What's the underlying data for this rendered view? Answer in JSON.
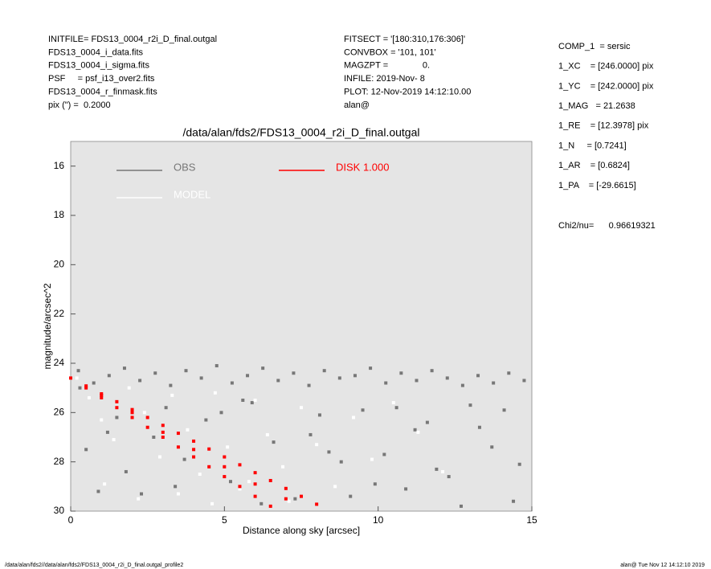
{
  "header": {
    "left": [
      "INITFILE= FDS13_0004_r2i_D_final.outgal",
      "FDS13_0004_i_data.fits",
      "FDS13_0004_i_sigma.fits",
      "PSF     = psf_i13_over2.fits",
      "FDS13_0004_r_finmask.fits",
      "pix (\") =  0.2000"
    ],
    "middle": [
      "FITSECT = '[180:310,176:306]'",
      "CONVBOX = '101, 101'",
      "MAGZPT =              0.",
      "INFILE: 2019-Nov- 8",
      "PLOT: 12-Nov-2019 14:12:10.00",
      "alan@"
    ],
    "right": [
      "COMP_1  = sersic",
      "1_XC    = [246.0000] pix",
      "1_YC    = [242.0000] pix",
      "1_MAG   = 21.2638",
      "1_RE    = [12.3978] pix",
      "1_N     = [0.7241]",
      "1_AR    = [0.6824]",
      "1_PA    = [-29.6615]"
    ],
    "chi2": "Chi2/nu=      0.96619321"
  },
  "footer": {
    "left": "/data/alan/fds2//data/alan/fds2/FDS13_0004_r2i_D_final.outgal_profile2",
    "right": "alan@  Tue Nov 12 14:12:10 2019"
  },
  "chart_data": {
    "type": "scatter",
    "title": "/data/alan/fds2/FDS13_0004_r2i_D_final.outgal",
    "x_label": "Distance along sky [arcsec]",
    "y_label": "magnitude/arcsec^2",
    "xlim": [
      0,
      15
    ],
    "ylim": [
      30,
      15
    ],
    "xticks": [
      0,
      5,
      10,
      15
    ],
    "yticks": [
      16,
      18,
      20,
      22,
      24,
      26,
      28,
      30
    ],
    "background": "#e5e5e5",
    "series": [
      {
        "name": "OBS",
        "color": "#777777",
        "x": [
          0.25,
          0.75,
          1.25,
          1.75,
          2.25,
          2.75,
          3.25,
          3.75,
          4.25,
          4.75,
          5.25,
          5.75,
          6.25,
          6.75,
          7.25,
          7.75,
          8.25,
          8.75,
          9.25,
          9.75,
          10.25,
          10.75,
          11.25,
          11.75,
          12.25,
          12.75,
          13.25,
          13.75,
          14.25,
          14.75,
          0.5,
          1.2,
          1.8,
          2.3,
          3.1,
          3.7,
          4.4,
          5.2,
          5.9,
          6.6,
          7.3,
          8.1,
          8.8,
          9.5,
          10.2,
          10.9,
          11.6,
          12.3,
          13.0,
          13.7,
          14.4,
          0.9,
          2.7,
          4.9,
          6.2,
          7.8,
          9.1,
          10.6,
          11.9,
          13.3,
          14.6,
          1.5,
          3.4,
          5.6,
          8.4,
          9.9,
          11.2,
          12.7,
          14.1,
          0.3
        ],
        "values": [
          24.3,
          24.8,
          24.5,
          24.2,
          24.7,
          24.4,
          24.9,
          24.3,
          24.6,
          24.1,
          24.8,
          24.5,
          24.2,
          24.7,
          24.4,
          24.9,
          24.3,
          24.6,
          24.5,
          24.2,
          24.8,
          24.4,
          24.7,
          24.3,
          24.6,
          24.9,
          24.5,
          24.8,
          24.4,
          24.7,
          27.5,
          26.8,
          28.4,
          29.3,
          25.8,
          27.9,
          26.3,
          28.8,
          25.6,
          27.2,
          29.5,
          26.1,
          28.0,
          25.9,
          27.7,
          29.1,
          26.4,
          28.6,
          25.7,
          27.4,
          29.6,
          29.2,
          27.0,
          26.0,
          29.7,
          26.9,
          29.4,
          25.8,
          28.3,
          26.6,
          28.1,
          26.2,
          29.0,
          25.5,
          27.6,
          28.9,
          26.7,
          29.8,
          25.9,
          25.0
        ]
      },
      {
        "name": "MODEL",
        "color": "#ffffff",
        "x": [
          0.2,
          0.6,
          1.0,
          1.4,
          1.9,
          2.4,
          2.9,
          3.3,
          3.8,
          4.2,
          4.7,
          5.1,
          5.5,
          6.0,
          6.4,
          6.9,
          7.5,
          8.0,
          8.6,
          9.2,
          9.8,
          10.5,
          11.3,
          12.1,
          1.1,
          2.2,
          3.5,
          4.6,
          5.8,
          7.1
        ],
        "values": [
          24.6,
          25.4,
          26.3,
          27.1,
          25.0,
          26.0,
          27.8,
          25.3,
          26.7,
          28.5,
          25.2,
          27.4,
          29.1,
          25.5,
          26.9,
          28.2,
          25.8,
          27.3,
          29.0,
          26.2,
          27.9,
          25.6,
          26.8,
          28.4,
          28.9,
          29.5,
          29.3,
          29.7,
          28.8,
          29.6
        ]
      },
      {
        "name": "DISK  1.000",
        "color": "#ff0000",
        "x": [
          0,
          0.5,
          1,
          1.5,
          2,
          2.5,
          3,
          3.5,
          4,
          4.5,
          5,
          5.5,
          6,
          6.5,
          7,
          7.5,
          8,
          0.5,
          1,
          1.5,
          2,
          2.5,
          3,
          3.5,
          4,
          4.5,
          5,
          5.5,
          6,
          6.5,
          1,
          2,
          3,
          4,
          5,
          6,
          7
        ],
        "values": [
          24.6,
          24.92,
          25.24,
          25.56,
          25.88,
          26.2,
          26.52,
          26.84,
          27.16,
          27.48,
          27.8,
          28.12,
          28.44,
          28.76,
          29.08,
          29.4,
          29.72,
          25.0,
          25.4,
          25.8,
          26.2,
          26.6,
          27.0,
          27.4,
          27.8,
          28.2,
          28.6,
          29.0,
          29.4,
          29.8,
          25.3,
          26.0,
          26.8,
          27.5,
          28.2,
          28.9,
          29.5
        ]
      }
    ]
  }
}
